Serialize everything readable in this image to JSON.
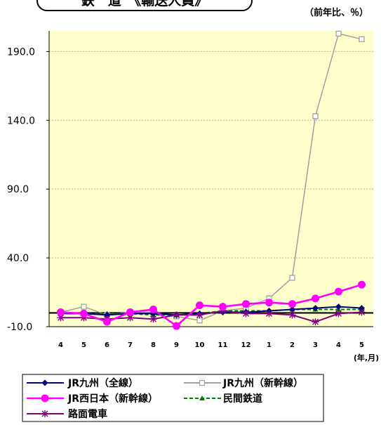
{
  "header": {
    "title_partial": "鉄　道　《輸送人員》"
  },
  "unit_note": "（前年比、％）",
  "chart_data": {
    "type": "line",
    "categories": [
      "4",
      "5",
      "6",
      "7",
      "8",
      "9",
      "10",
      "11",
      "12",
      "1",
      "2",
      "3",
      "4",
      "5"
    ],
    "x_axis_unit": "(年,月)",
    "yticks": [
      "190.0",
      "140.0",
      "90.0",
      "40.0",
      "-10.0"
    ],
    "ytick_values": [
      190,
      140,
      90,
      40,
      -10
    ],
    "ylim": [
      -10,
      205
    ],
    "grid": true,
    "legend_position": "bottom-left",
    "series": [
      {
        "name": "JR九州（全線）",
        "color": "#000080",
        "marker": "diamond",
        "dash": "solid",
        "values": [
          -0.5,
          -0.5,
          -1.5,
          -0.5,
          -0.5,
          -1.5,
          -0.5,
          0.5,
          0.5,
          1.5,
          2.5,
          3.5,
          4.5,
          3.5
        ]
      },
      {
        "name": "JR九州（新幹線）",
        "color": "#a0a0a0",
        "marker": "square-open",
        "dash": "solid",
        "values": [
          0.5,
          4.5,
          -1.5,
          0.5,
          0.5,
          -2.5,
          -5.5,
          1.5,
          3.5,
          10.5,
          25.5,
          143,
          203,
          199
        ]
      },
      {
        "name": "JR西日本（新幹線）",
        "color": "#ff00ff",
        "marker": "circle",
        "dash": "solid",
        "values": [
          0.5,
          -0.5,
          -6.5,
          0.5,
          2.5,
          -9.5,
          5.5,
          4.5,
          6.5,
          7.5,
          6.5,
          10.5,
          15.5,
          20.5
        ]
      },
      {
        "name": "民間鉄道",
        "color": "#008000",
        "marker": "triangle",
        "dash": "dashed",
        "values": [
          -0.5,
          -0.5,
          -0.5,
          -0.5,
          -1.5,
          -1.5,
          -0.5,
          1.5,
          1.5,
          1.5,
          2.5,
          2.5,
          2.5,
          2.5
        ]
      },
      {
        "name": "路面電車",
        "color": "#800080",
        "marker": "star",
        "dash": "solid",
        "values": [
          -3.5,
          -3.5,
          -4.5,
          -3.5,
          -4.5,
          -1.5,
          -1.5,
          1.5,
          -0.5,
          -0.5,
          -1.5,
          -6.5,
          -0.5,
          0.5
        ]
      }
    ]
  }
}
